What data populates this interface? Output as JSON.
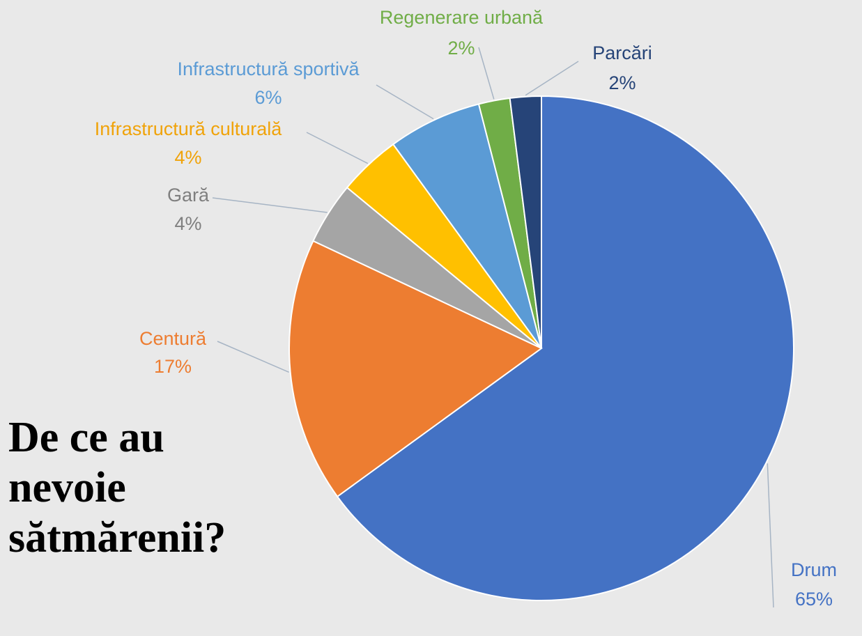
{
  "chart_data": {
    "type": "pie",
    "title": "De ce au nevoie sătmărenii?",
    "categories": [
      "Drum",
      "Centură",
      "Gară",
      "Infrastructură culturală",
      "Infrastructură sportivă",
      "Regenerare urbană",
      "Parcări"
    ],
    "values": [
      65,
      17,
      4,
      4,
      6,
      2,
      2
    ],
    "value_labels": [
      "65%",
      "17%",
      "4%",
      "4%",
      "6%",
      "2%",
      "2%"
    ],
    "colors": [
      "#4472c4",
      "#ed7d31",
      "#a5a5a5",
      "#ffc000",
      "#5b9bd5",
      "#70ad47",
      "#264478"
    ]
  }
}
